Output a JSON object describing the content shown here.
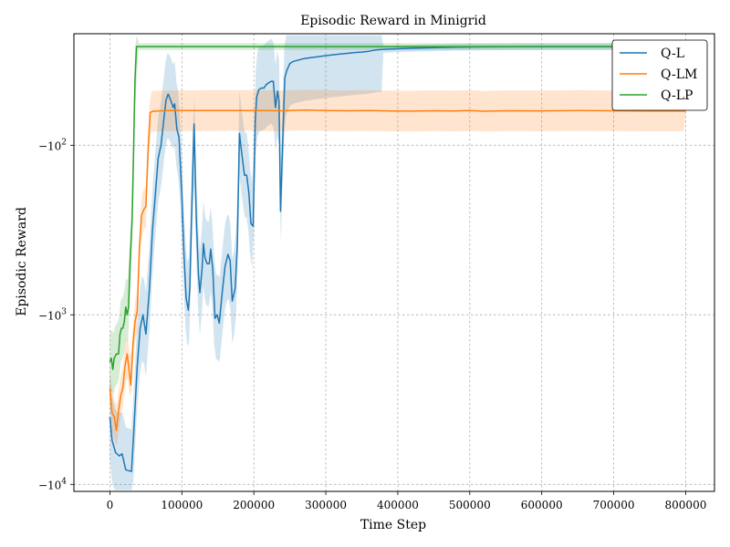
{
  "chart_data": {
    "type": "line",
    "title": "Episodic Reward in Minigrid",
    "xlabel": "Time Step",
    "ylabel": "Episodic Reward",
    "xlim": [
      -50000,
      840000
    ],
    "ylim": [
      -11000,
      -22
    ],
    "yscale": "symlog",
    "grid": true,
    "legend_position": "top-right",
    "x_ticks": [
      0,
      100000,
      200000,
      300000,
      400000,
      500000,
      600000,
      700000,
      800000
    ],
    "x_tick_labels": [
      "0",
      "100000",
      "200000",
      "300000",
      "400000",
      "500000",
      "600000",
      "700000",
      "800000"
    ],
    "y_ticks": [
      -100,
      -1000,
      -10000
    ],
    "y_tick_labels": [
      "−10",
      "−10",
      "−10"
    ],
    "y_tick_exponents": [
      "2",
      "3",
      "4"
    ],
    "series": [
      {
        "name": "Q-L",
        "color": "#1f77b4",
        "points": [
          [
            0,
            -4000
          ],
          [
            3000,
            -5500
          ],
          [
            8000,
            -6500
          ],
          [
            13000,
            -6800
          ],
          [
            17000,
            -6600
          ],
          [
            22000,
            -8200
          ],
          [
            30000,
            -8400
          ],
          [
            33000,
            -5000
          ],
          [
            38000,
            -2000
          ],
          [
            42000,
            -1200
          ],
          [
            46000,
            -1000
          ],
          [
            50000,
            -1300
          ],
          [
            55000,
            -700
          ],
          [
            59000,
            -320
          ],
          [
            63000,
            -200
          ],
          [
            67000,
            -120
          ],
          [
            71000,
            -100
          ],
          [
            75000,
            -70
          ],
          [
            78000,
            -54
          ],
          [
            81000,
            -50
          ],
          [
            85000,
            -55
          ],
          [
            88000,
            -60
          ],
          [
            90000,
            -57
          ],
          [
            93000,
            -80
          ],
          [
            96000,
            -90
          ],
          [
            100000,
            -200
          ],
          [
            103000,
            -450
          ],
          [
            106000,
            -800
          ],
          [
            109000,
            -940
          ],
          [
            111000,
            -700
          ],
          [
            114000,
            -210
          ],
          [
            117000,
            -75
          ],
          [
            120000,
            -270
          ],
          [
            123000,
            -580
          ],
          [
            125000,
            -740
          ],
          [
            128000,
            -540
          ],
          [
            130000,
            -380
          ],
          [
            132000,
            -460
          ],
          [
            135000,
            -500
          ],
          [
            138000,
            -500
          ],
          [
            140000,
            -410
          ],
          [
            143000,
            -540
          ],
          [
            146000,
            -1050
          ],
          [
            149000,
            -1000
          ],
          [
            152000,
            -1120
          ],
          [
            156000,
            -740
          ],
          [
            160000,
            -520
          ],
          [
            164000,
            -440
          ],
          [
            167000,
            -480
          ],
          [
            170000,
            -830
          ],
          [
            174000,
            -700
          ],
          [
            177000,
            -400
          ],
          [
            180000,
            -85
          ],
          [
            183000,
            -110
          ],
          [
            187000,
            -150
          ],
          [
            190000,
            -150
          ],
          [
            193000,
            -190
          ],
          [
            196000,
            -290
          ],
          [
            199000,
            -300
          ],
          [
            202000,
            -70
          ],
          [
            204000,
            -52
          ],
          [
            207000,
            -47
          ],
          [
            210000,
            -46
          ],
          [
            214000,
            -46
          ],
          [
            217000,
            -44
          ],
          [
            220000,
            -43
          ],
          [
            224000,
            -42
          ],
          [
            227000,
            -42
          ],
          [
            230000,
            -60
          ],
          [
            233000,
            -48
          ],
          [
            235000,
            -55
          ],
          [
            237000,
            -245
          ],
          [
            240000,
            -100
          ],
          [
            243000,
            -40
          ],
          [
            246000,
            -36
          ],
          [
            250000,
            -33
          ],
          [
            255000,
            -32
          ],
          [
            260000,
            -31.6
          ],
          [
            270000,
            -30.8
          ],
          [
            280000,
            -30.4
          ],
          [
            290000,
            -30.0
          ],
          [
            300000,
            -29.6
          ],
          [
            310000,
            -29.3
          ],
          [
            320000,
            -29.0
          ],
          [
            330000,
            -28.7
          ],
          [
            340000,
            -28.4
          ],
          [
            350000,
            -28.2
          ],
          [
            360000,
            -27.9
          ],
          [
            370000,
            -27.4
          ],
          [
            380000,
            -27.2
          ],
          [
            400000,
            -27.0
          ],
          [
            420000,
            -26.8
          ],
          [
            450000,
            -26.6
          ],
          [
            480000,
            -26.4
          ],
          [
            520000,
            -26.3
          ],
          [
            560000,
            -26.25
          ],
          [
            600000,
            -26.2
          ],
          [
            650000,
            -26.2
          ],
          [
            700000,
            -26.2
          ],
          [
            750000,
            -26.2
          ],
          [
            800000,
            -26.2
          ]
        ]
      },
      {
        "name": "Q-LM",
        "color": "#ff7f0e",
        "points": [
          [
            0,
            -2700
          ],
          [
            3000,
            -3800
          ],
          [
            6000,
            -4000
          ],
          [
            9000,
            -4800
          ],
          [
            12000,
            -3700
          ],
          [
            15000,
            -3000
          ],
          [
            18000,
            -2700
          ],
          [
            21000,
            -2000
          ],
          [
            24000,
            -1700
          ],
          [
            26000,
            -2000
          ],
          [
            29000,
            -2600
          ],
          [
            32000,
            -1500
          ],
          [
            35000,
            -1100
          ],
          [
            38000,
            -950
          ],
          [
            41000,
            -400
          ],
          [
            44000,
            -260
          ],
          [
            47000,
            -240
          ],
          [
            50000,
            -230
          ],
          [
            53000,
            -110
          ],
          [
            56000,
            -64
          ],
          [
            60000,
            -63
          ],
          [
            80000,
            -62.5
          ],
          [
            100000,
            -62.5
          ],
          [
            150000,
            -62.4
          ],
          [
            200000,
            -62.4
          ],
          [
            240000,
            -62.6
          ],
          [
            270000,
            -62.0
          ],
          [
            300000,
            -62.4
          ],
          [
            330000,
            -62.6
          ],
          [
            360000,
            -62.4
          ],
          [
            390000,
            -62.8
          ],
          [
            420000,
            -62.9
          ],
          [
            450000,
            -62.6
          ],
          [
            480000,
            -62.8
          ],
          [
            500000,
            -62.4
          ],
          [
            520000,
            -63.0
          ],
          [
            550000,
            -62.6
          ],
          [
            600000,
            -62.7
          ],
          [
            650000,
            -62.4
          ],
          [
            700000,
            -62.6
          ],
          [
            750000,
            -62.8
          ],
          [
            800000,
            -62.8
          ]
        ]
      },
      {
        "name": "Q-LP",
        "color": "#2ca02c",
        "points": [
          [
            0,
            -1900
          ],
          [
            2000,
            -1800
          ],
          [
            4000,
            -2100
          ],
          [
            6000,
            -1800
          ],
          [
            9000,
            -1700
          ],
          [
            12000,
            -1700
          ],
          [
            14000,
            -1300
          ],
          [
            16000,
            -1200
          ],
          [
            18000,
            -1200
          ],
          [
            20000,
            -1100
          ],
          [
            22000,
            -900
          ],
          [
            24000,
            -1000
          ],
          [
            26000,
            -900
          ],
          [
            28000,
            -500
          ],
          [
            31000,
            -270
          ],
          [
            33000,
            -100
          ],
          [
            35000,
            -40
          ],
          [
            37000,
            -26.2
          ],
          [
            50000,
            -26.2
          ],
          [
            100000,
            -26.2
          ],
          [
            200000,
            -26.2
          ],
          [
            300000,
            -26.2
          ],
          [
            400000,
            -26.2
          ],
          [
            500000,
            -26.2
          ],
          [
            600000,
            -26.2
          ],
          [
            700000,
            -26.2
          ],
          [
            800000,
            -26.2
          ]
        ]
      }
    ]
  }
}
